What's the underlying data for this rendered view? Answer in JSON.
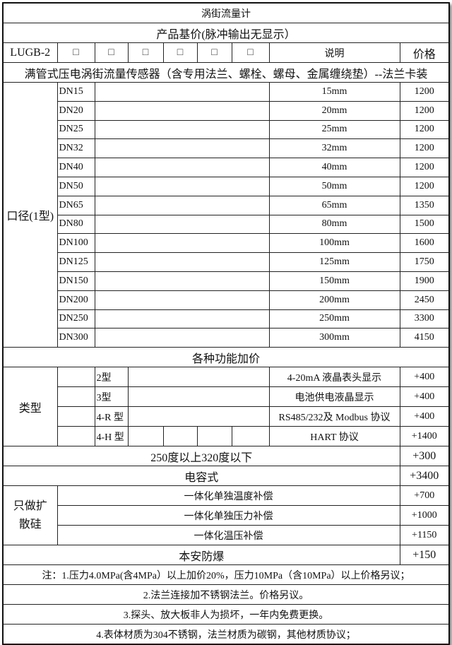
{
  "title": "涡街流量计",
  "base_price_header": "产品基价(脉冲输出无显示）",
  "header": {
    "model": "LUGB-2",
    "boxes": [
      "□",
      "□",
      "□",
      "□",
      "□",
      "□"
    ],
    "desc": "说明",
    "price": "价格"
  },
  "sensor_desc": "满管式压电涡街流量传感器（含专用法兰、螺栓、螺母、金属缠绕垫）--法兰卡装",
  "caliber_label": "口径(1型)",
  "caliber_rows": [
    {
      "dn": "DN15",
      "size": "15mm",
      "price": "1200"
    },
    {
      "dn": "DN20",
      "size": "20mm",
      "price": "1200"
    },
    {
      "dn": "DN25",
      "size": "25mm",
      "price": "1200"
    },
    {
      "dn": "DN32",
      "size": "32mm",
      "price": "1200"
    },
    {
      "dn": "DN40",
      "size": "40mm",
      "price": "1200"
    },
    {
      "dn": "DN50",
      "size": "50mm",
      "price": "1200"
    },
    {
      "dn": "DN65",
      "size": "65mm",
      "price": "1350"
    },
    {
      "dn": "DN80",
      "size": "80mm",
      "price": "1500"
    },
    {
      "dn": "DN100",
      "size": "100mm",
      "price": "1600"
    },
    {
      "dn": "DN125",
      "size": "125mm",
      "price": "1750"
    },
    {
      "dn": "DN150",
      "size": "150mm",
      "price": "1900"
    },
    {
      "dn": "DN200",
      "size": "200mm",
      "price": "2450"
    },
    {
      "dn": "DN250",
      "size": "250mm",
      "price": "3300"
    },
    {
      "dn": "DN300",
      "size": "300mm",
      "price": "4150"
    }
  ],
  "function_header": "各种功能加价",
  "type_label": "类型",
  "type_rows": [
    {
      "type": "2型",
      "desc": "4-20mA  液晶表头显示",
      "price": "+400"
    },
    {
      "type": "3型",
      "desc": "电池供电液晶显示",
      "price": "+400"
    },
    {
      "type": "4-R 型",
      "desc": "RS485/232及 Modbus 协议",
      "price": "+400"
    },
    {
      "type": "4-H 型",
      "desc": "HART 协议",
      "price": "+1400"
    }
  ],
  "temp_option": {
    "desc": "250度以上320度以下",
    "price": "+300"
  },
  "capacitive_option": {
    "desc": "电容式",
    "price": "+3400"
  },
  "silicon_label": "只做扩散硅",
  "silicon_rows": [
    {
      "desc": "一体化单独温度补偿",
      "price": "+700"
    },
    {
      "desc": "一体化单独压力补偿",
      "price": "+1000"
    },
    {
      "desc": "一体化温压补偿",
      "price": "+1150"
    }
  ],
  "explosion_option": {
    "desc": "本安防爆",
    "price": "+150"
  },
  "notes": [
    "注：1.压力4.0MPa(含4MPa）以上加价20%，压力10MPa（含10MPa）以上价格另议；",
    "2.法兰连接加不锈钢法兰。价格另议。",
    "3.探头、放大板非人为损坏，一年内免费更换。",
    "4.表体材质为304不锈钢，法兰材质为碳钢，其他材质协议；"
  ]
}
